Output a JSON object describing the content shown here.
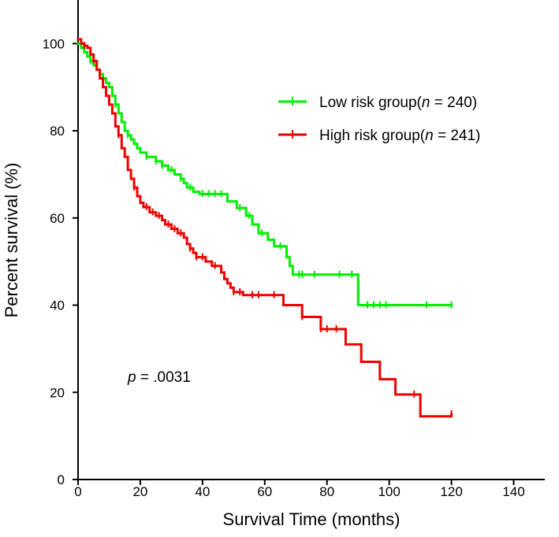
{
  "chart_data": {
    "type": "line",
    "title": "",
    "xlabel": "Survival Time (months)",
    "ylabel": "Percent survival (%)",
    "xlim": [
      0,
      150
    ],
    "ylim": [
      0,
      110
    ],
    "xticks": [
      0,
      20,
      40,
      60,
      80,
      100,
      120,
      140
    ],
    "yticks": [
      0,
      20,
      40,
      60,
      80,
      100
    ],
    "xtick_labels": [
      "0",
      "20",
      "40",
      "60",
      "80",
      "100",
      "120",
      "140"
    ],
    "ytick_labels": [
      "0",
      "20",
      "40",
      "60",
      "80",
      "100"
    ],
    "grid": false,
    "legend_position": "top-right",
    "annotation": {
      "symbol": "p",
      "text": " = .0031"
    },
    "series": [
      {
        "name": "Low risk group",
        "legend_prefix": "Low risk group(",
        "legend_italic": "n",
        "legend_suffix": " = 240)",
        "color": "#00ee00",
        "steps": [
          [
            0,
            100
          ],
          [
            1,
            99
          ],
          [
            2,
            98
          ],
          [
            3,
            97
          ],
          [
            4,
            96
          ],
          [
            5,
            95
          ],
          [
            6,
            94
          ],
          [
            7,
            93
          ],
          [
            8,
            92
          ],
          [
            9,
            91
          ],
          [
            10,
            90
          ],
          [
            11,
            88
          ],
          [
            12,
            86
          ],
          [
            13,
            84
          ],
          [
            14,
            82
          ],
          [
            15,
            80
          ],
          [
            16,
            79
          ],
          [
            17,
            78
          ],
          [
            18,
            77
          ],
          [
            19,
            76
          ],
          [
            20,
            75
          ],
          [
            22,
            74
          ],
          [
            25,
            73
          ],
          [
            27,
            72
          ],
          [
            29,
            71
          ],
          [
            31,
            70
          ],
          [
            33,
            69
          ],
          [
            34,
            68
          ],
          [
            35,
            67
          ],
          [
            37,
            66
          ],
          [
            39,
            65.5
          ],
          [
            48,
            63.8
          ],
          [
            51,
            62.3
          ],
          [
            54,
            60.5
          ],
          [
            56,
            58.5
          ],
          [
            58,
            56.5
          ],
          [
            61,
            55
          ],
          [
            63,
            53.5
          ],
          [
            67,
            51
          ],
          [
            68,
            49
          ],
          [
            69,
            47
          ],
          [
            90,
            40
          ],
          [
            120,
            40
          ]
        ],
        "censor_marks": [
          [
            4,
            96
          ],
          [
            8,
            92
          ],
          [
            12,
            86
          ],
          [
            16,
            79
          ],
          [
            22,
            74
          ],
          [
            25,
            73
          ],
          [
            27,
            72
          ],
          [
            30,
            71
          ],
          [
            33,
            69
          ],
          [
            36,
            67
          ],
          [
            40,
            65.5
          ],
          [
            42,
            65.5
          ],
          [
            44,
            65.5
          ],
          [
            46,
            65.5
          ],
          [
            52,
            62.3
          ],
          [
            55,
            60.5
          ],
          [
            59,
            56.5
          ],
          [
            65,
            53.5
          ],
          [
            71,
            47
          ],
          [
            72,
            47
          ],
          [
            76,
            47
          ],
          [
            84,
            47
          ],
          [
            88,
            47
          ],
          [
            93,
            40
          ],
          [
            95,
            40
          ],
          [
            97,
            40
          ],
          [
            99,
            40
          ],
          [
            112,
            40
          ],
          [
            120,
            40
          ]
        ]
      },
      {
        "name": "High risk group",
        "legend_prefix": "High risk group(",
        "legend_italic": "n",
        "legend_suffix": " = 241)",
        "color": "#ee0000",
        "steps": [
          [
            0,
            101
          ],
          [
            1,
            100
          ],
          [
            2,
            99.5
          ],
          [
            3,
            99
          ],
          [
            4,
            97.5
          ],
          [
            5,
            96
          ],
          [
            6,
            94
          ],
          [
            7,
            92
          ],
          [
            8,
            90
          ],
          [
            9,
            88
          ],
          [
            10,
            86
          ],
          [
            11,
            84
          ],
          [
            12,
            81
          ],
          [
            13,
            79
          ],
          [
            14,
            76
          ],
          [
            15,
            74
          ],
          [
            16,
            71
          ],
          [
            17,
            69
          ],
          [
            18,
            67
          ],
          [
            19,
            65
          ],
          [
            20,
            63.5
          ],
          [
            21,
            62.5
          ],
          [
            23,
            61.3
          ],
          [
            25,
            60.5
          ],
          [
            27,
            59.5
          ],
          [
            28,
            58.5
          ],
          [
            30,
            57.5
          ],
          [
            32,
            56.5
          ],
          [
            34,
            55.5
          ],
          [
            35,
            54
          ],
          [
            36,
            53
          ],
          [
            37,
            52
          ],
          [
            38,
            51
          ],
          [
            41,
            50
          ],
          [
            43,
            49
          ],
          [
            46,
            47.5
          ],
          [
            47,
            46
          ],
          [
            48,
            45
          ],
          [
            49,
            44
          ],
          [
            50,
            43
          ],
          [
            53,
            42.3
          ],
          [
            66,
            40
          ],
          [
            72,
            37.3
          ],
          [
            78,
            34.5
          ],
          [
            86,
            31
          ],
          [
            91,
            27
          ],
          [
            97,
            23
          ],
          [
            102,
            19.5
          ],
          [
            110,
            14.5
          ],
          [
            120,
            15
          ]
        ],
        "censor_marks": [
          [
            2,
            99.5
          ],
          [
            5,
            96
          ],
          [
            13,
            79
          ],
          [
            18,
            67
          ],
          [
            22,
            62.5
          ],
          [
            24,
            61.3
          ],
          [
            26,
            60.5
          ],
          [
            29,
            58.5
          ],
          [
            31,
            57.5
          ],
          [
            33,
            56.5
          ],
          [
            36,
            53
          ],
          [
            38,
            51
          ],
          [
            40,
            51
          ],
          [
            44,
            49
          ],
          [
            50,
            43
          ],
          [
            52,
            43
          ],
          [
            56,
            42.3
          ],
          [
            58,
            42.3
          ],
          [
            63,
            42.3
          ],
          [
            72,
            37.3
          ],
          [
            78,
            34.5
          ],
          [
            80,
            34.5
          ],
          [
            83,
            34.5
          ],
          [
            108,
            19.5
          ],
          [
            120,
            15
          ]
        ]
      }
    ]
  }
}
